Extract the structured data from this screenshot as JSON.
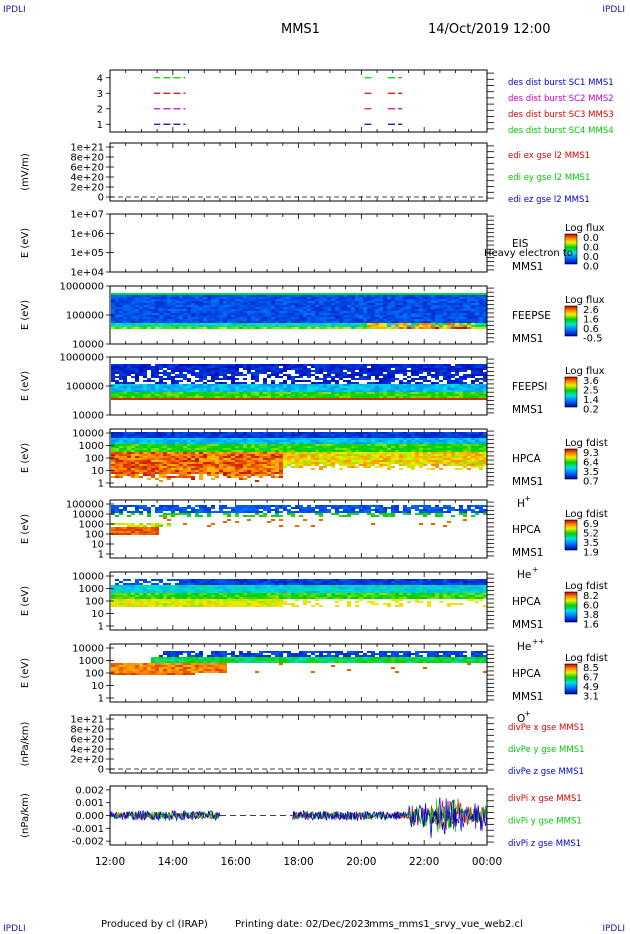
{
  "header": {
    "title": "MMS1",
    "date": "14/Oct/2019 12:00",
    "corner_tl": "IPDLI",
    "corner_tr": "IPDLI",
    "corner_bl": "IPDLI",
    "corner_br": "IPDLI"
  },
  "footer": {
    "produced": "Produced by cl (IRAP)",
    "printing": "Printing date: 02/Dec/2023",
    "file": "mms_mms1_srvy_vue_web2.cl"
  },
  "x_axis": {
    "ticks": [
      "12:00",
      "14:00",
      "16:00",
      "18:00",
      "20:00",
      "22:00",
      "00:00"
    ],
    "range_hours": [
      12,
      24
    ]
  },
  "colors": {
    "blue": "#0000cc",
    "magenta": "#cc00cc",
    "red": "#dd0000",
    "green": "#00cc00"
  },
  "chart_data": [
    {
      "type": "line",
      "id": "burst",
      "y_ticks": [
        "4",
        "3",
        "2",
        "1"
      ],
      "ylim": [
        0.5,
        4.5
      ],
      "segments": [
        {
          "level": 4,
          "color": "green",
          "x": [
            [
              13.4,
              13.6
            ],
            [
              13.7,
              14.4
            ],
            [
              20.1,
              20.35
            ],
            [
              20.85,
              21.3
            ]
          ]
        },
        {
          "level": 3,
          "color": "red",
          "x": [
            [
              13.4,
              13.6
            ],
            [
              13.7,
              14.4
            ],
            [
              20.1,
              20.35
            ],
            [
              20.85,
              21.3
            ]
          ]
        },
        {
          "level": 2,
          "color": "magenta",
          "x": [
            [
              13.4,
              13.6
            ],
            [
              13.7,
              14.4
            ],
            [
              20.1,
              20.35
            ],
            [
              20.85,
              21.3
            ]
          ]
        },
        {
          "level": 1,
          "color": "blue",
          "x": [
            [
              13.4,
              13.6
            ],
            [
              13.7,
              14.4
            ],
            [
              20.1,
              20.35
            ],
            [
              20.85,
              21.3
            ]
          ]
        }
      ],
      "legend": [
        {
          "text": "des dist burst SC1 MMS1",
          "color": "blue"
        },
        {
          "text": "des dist burst SC2 MMS2",
          "color": "magenta"
        },
        {
          "text": "des dist burst SC3 MMS3",
          "color": "red"
        },
        {
          "text": "des dist burst SC4 MMS4",
          "color": "green"
        }
      ]
    },
    {
      "type": "line",
      "id": "edi",
      "ylabel": "(mV/m)",
      "y_ticks": [
        "1e+21",
        "8e+20",
        "6e+20",
        "4e+20",
        "2e+20",
        "0"
      ],
      "legend": [
        {
          "text": "edi ex gse l2 MMS1",
          "color": "red"
        },
        {
          "text": "edi ey gse l2 MMS1",
          "color": "green"
        },
        {
          "text": "edi ez gse l2 MMS1",
          "color": "blue"
        }
      ]
    },
    {
      "type": "heatmap",
      "id": "eis",
      "ylabel": "E (eV)",
      "y_ticks": [
        "1e+07",
        "1e+06",
        "1e+05",
        "1e+04"
      ],
      "instrument": [
        "EIS",
        "MMS1"
      ],
      "overlay_text": "Heavy electron to",
      "cbar_title": "Log flux",
      "cbar_ticks": [
        "0.0",
        "0.0",
        "0.0",
        "0.0"
      ]
    },
    {
      "type": "heatmap",
      "id": "feepse",
      "ylabel": "E (eV)",
      "y_ticks": [
        "1000000",
        "100000",
        "10000"
      ],
      "instrument": [
        "FEEPSE",
        "MMS1"
      ],
      "cbar_title": "Log flux",
      "cbar_ticks": [
        "2.6",
        "1.6",
        "0.6",
        "-0.5"
      ]
    },
    {
      "type": "heatmap",
      "id": "feepsi",
      "ylabel": "E (eV)",
      "y_ticks": [
        "1000000",
        "100000",
        "10000"
      ],
      "instrument": [
        "FEEPSI",
        "MMS1"
      ],
      "cbar_title": "Log flux",
      "cbar_ticks": [
        "3.6",
        "2.5",
        "1.4",
        "0.2"
      ]
    },
    {
      "type": "heatmap",
      "id": "hpca_h",
      "ylabel": "E (eV)",
      "y_ticks": [
        "10000",
        "1000",
        "100",
        "10",
        "1"
      ],
      "instrument": [
        "HPCA",
        "MMS1"
      ],
      "species": "H",
      "species_sup": "+",
      "cbar_title": "Log fdist",
      "cbar_ticks": [
        "9.3",
        "6.4",
        "3.5",
        "0.7"
      ]
    },
    {
      "type": "heatmap",
      "id": "hpca_he",
      "ylabel": "E (eV)",
      "y_ticks": [
        "100000",
        "10000",
        "1000",
        "100",
        "10",
        "1"
      ],
      "instrument": [
        "HPCA",
        "MMS1"
      ],
      "species": "He",
      "species_sup": "+",
      "cbar_title": "Log fdist",
      "cbar_ticks": [
        "6.9",
        "5.2",
        "3.5",
        "1.9"
      ]
    },
    {
      "type": "heatmap",
      "id": "hpca_hepp",
      "ylabel": "E (eV)",
      "y_ticks": [
        "10000",
        "1000",
        "100",
        "10",
        "1"
      ],
      "instrument": [
        "HPCA",
        "MMS1"
      ],
      "species": "He",
      "species_sup": "++",
      "cbar_title": "Log fdist",
      "cbar_ticks": [
        "8.2",
        "6.0",
        "3.8",
        "1.6"
      ]
    },
    {
      "type": "heatmap",
      "id": "hpca_o",
      "ylabel": "E (eV)",
      "y_ticks": [
        "10000",
        "1000",
        "100",
        "10",
        "1"
      ],
      "instrument": [
        "HPCA",
        "MMS1"
      ],
      "species": "O",
      "species_sup": "+",
      "cbar_title": "Log fdist",
      "cbar_ticks": [
        "8.5",
        "6.7",
        "4.9",
        "3.1"
      ]
    },
    {
      "type": "line",
      "id": "divpe",
      "ylabel": "(nPa/km)",
      "y_ticks": [
        "1e+21",
        "8e+20",
        "6e+20",
        "4e+20",
        "2e+20",
        "0"
      ],
      "legend": [
        {
          "text": "divPe x gse MMS1",
          "color": "red"
        },
        {
          "text": "divPe y gse MMS1",
          "color": "green"
        },
        {
          "text": "divPe z gse MMS1",
          "color": "blue"
        }
      ]
    },
    {
      "type": "line",
      "id": "divpi",
      "ylabel": "(nPa/km)",
      "y_ticks": [
        "0.002",
        "0.001",
        "0.000",
        "-0.001",
        "-0.002"
      ],
      "ylim": [
        -0.0023,
        0.0023
      ],
      "gap_hours": [
        15.5,
        17.8
      ],
      "legend": [
        {
          "text": "divPi x gse MMS1",
          "color": "red"
        },
        {
          "text": "divPi y gse MMS1",
          "color": "green"
        },
        {
          "text": "divPi z gse MMS1",
          "color": "blue"
        }
      ]
    }
  ]
}
